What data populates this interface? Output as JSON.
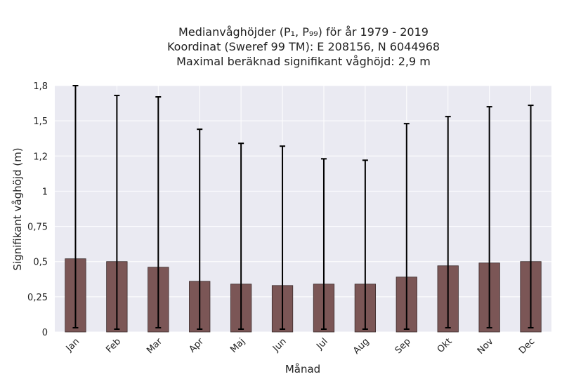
{
  "chart_data": {
    "type": "bar",
    "title_lines": [
      "Medianvåghöjder (P₁, P₉₉) för år 1979 - 2019",
      "Koordinat (Sweref 99 TM): E 208156, N 6044968",
      "Maximal beräknad signifikant våghöjd: 2,9 m"
    ],
    "xlabel": "Månad",
    "ylabel": "Signifikant våghöjd (m)",
    "categories": [
      "Jan",
      "Feb",
      "Mar",
      "Apr",
      "Maj",
      "Jun",
      "Jul",
      "Aug",
      "Sep",
      "Okt",
      "Nov",
      "Dec"
    ],
    "values": [
      0.52,
      0.5,
      0.46,
      0.36,
      0.34,
      0.33,
      0.34,
      0.34,
      0.39,
      0.47,
      0.49,
      0.5
    ],
    "error_low": [
      0.03,
      0.02,
      0.03,
      0.02,
      0.02,
      0.02,
      0.02,
      0.02,
      0.02,
      0.03,
      0.03,
      0.03
    ],
    "error_high": [
      1.75,
      1.68,
      1.67,
      1.44,
      1.34,
      1.32,
      1.23,
      1.22,
      1.48,
      1.53,
      1.6,
      1.61
    ],
    "ylim": [
      0,
      1.75
    ],
    "yticks": [
      0,
      0.25,
      0.5,
      0.75,
      1,
      1.25,
      1.5,
      1.75
    ],
    "ytick_labels": [
      "0",
      "0,25",
      "0,5",
      "0,75",
      "1",
      "1,2",
      "1,5",
      "1,8"
    ],
    "grid": true,
    "colors": {
      "bar_fill": "#7b5656",
      "bar_edge": "#3a2a2a",
      "error_bar": "#000000",
      "plot_background": "#eaeaf2",
      "grid": "#ffffff"
    }
  }
}
